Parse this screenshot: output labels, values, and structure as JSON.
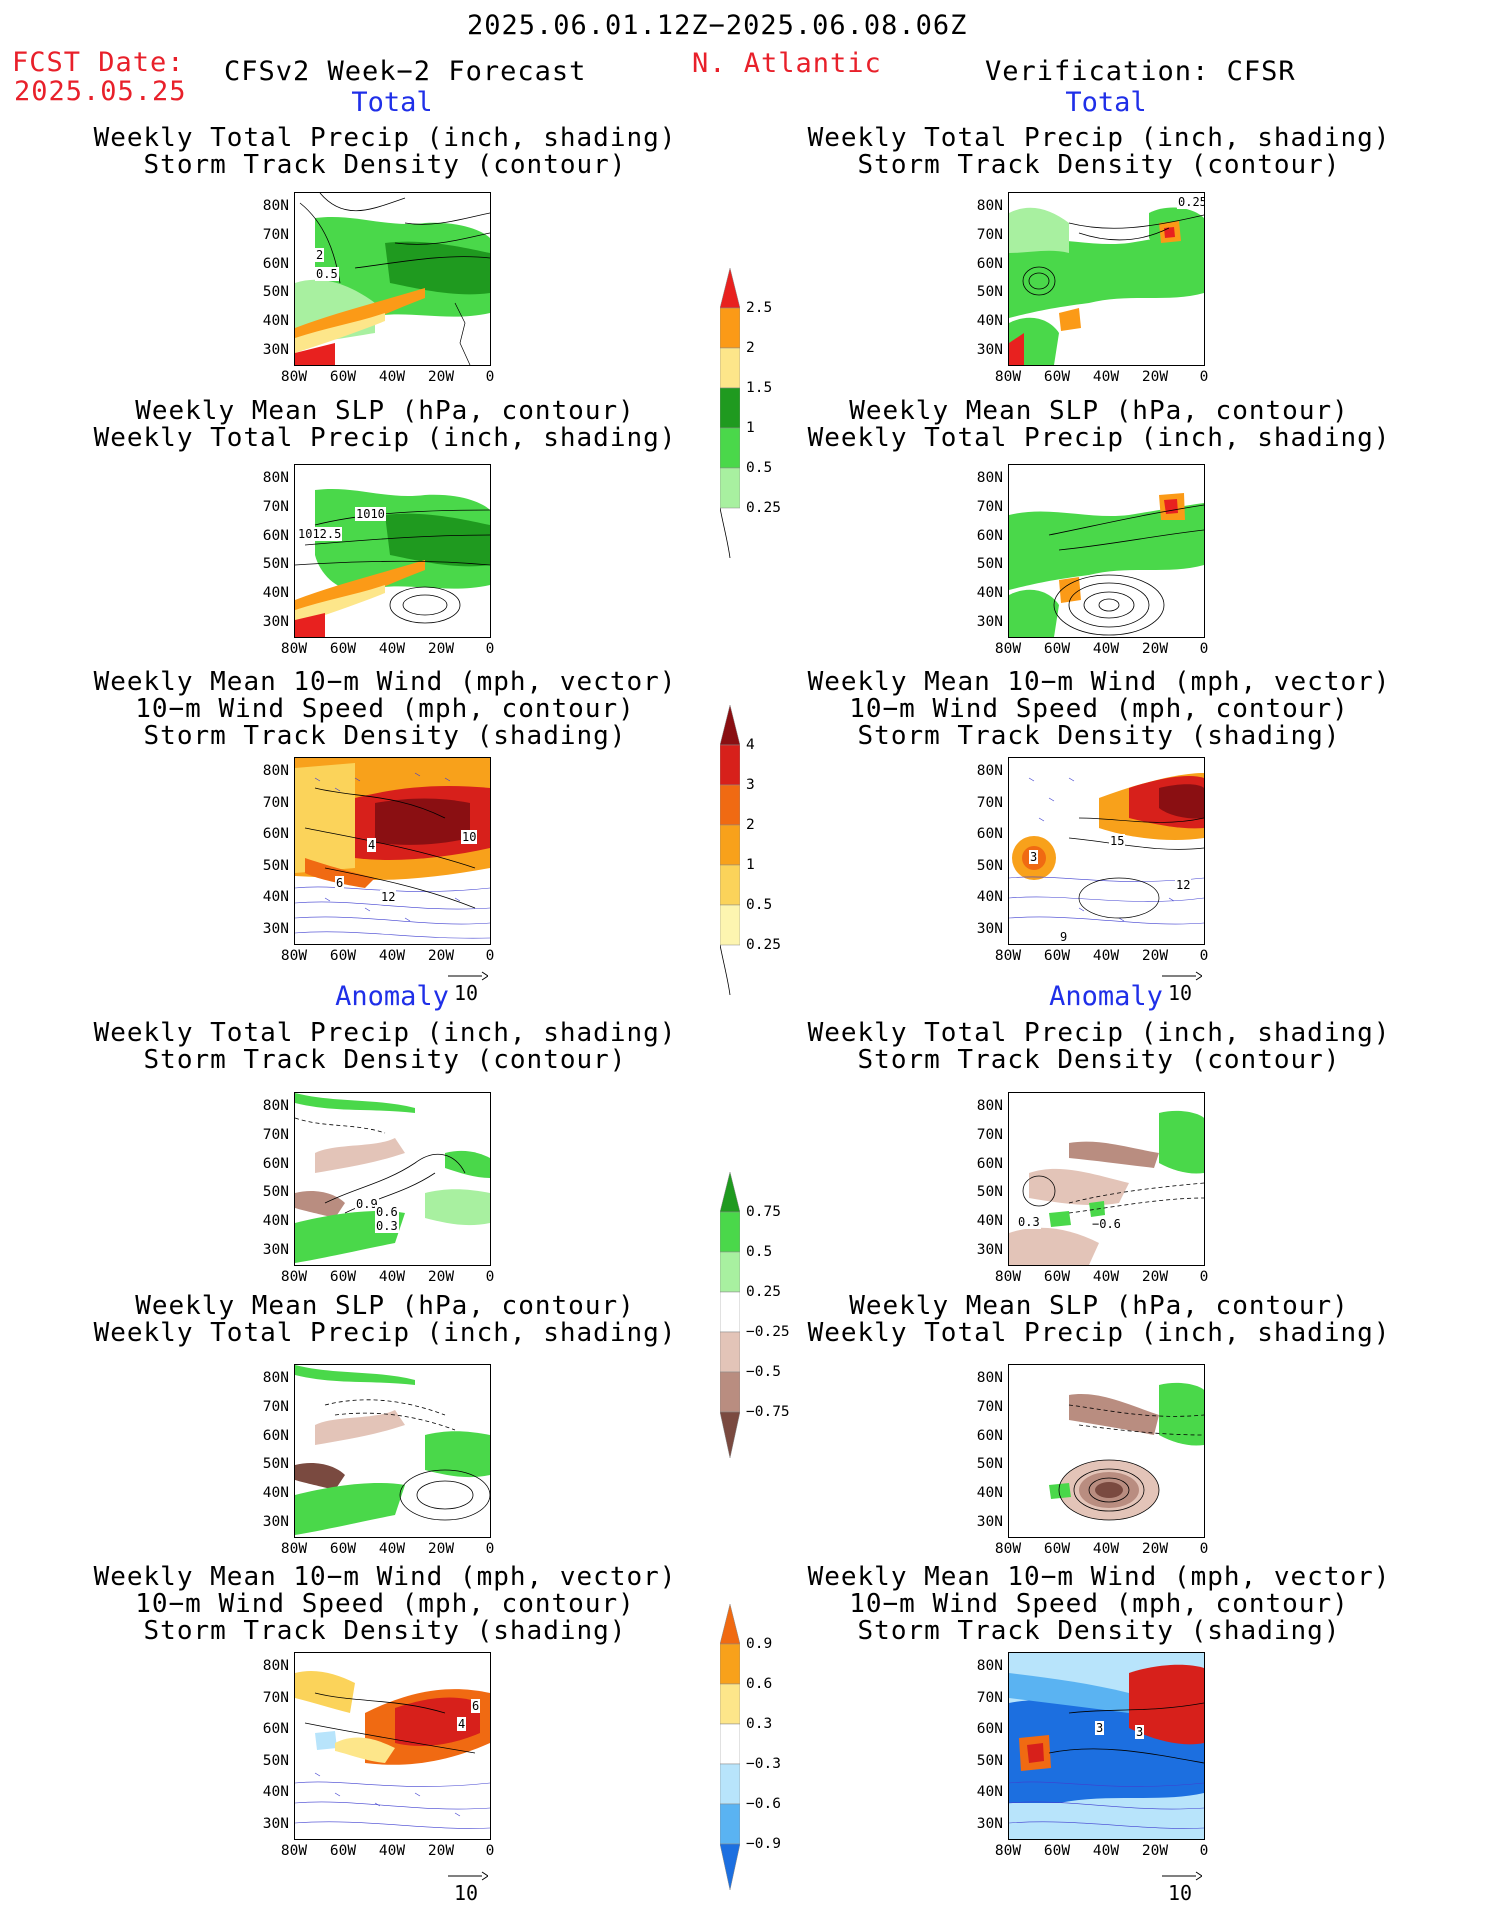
{
  "header": {
    "date_range": "2025.06.01.12Z−2025.06.08.06Z",
    "fcst_label": "FCST Date:",
    "fcst_date": "2025.05.25",
    "left_title": "CFSv2 Week−2 Forecast",
    "region": "N. Atlantic",
    "right_title": "Verification: CFSR"
  },
  "sections": {
    "total": "Total",
    "anomaly": "Anomaly"
  },
  "panel_titles": {
    "precip_track": "Weekly Total Precip (inch, shading)\nStorm Track Density (contour)",
    "slp_precip": "Weekly Mean SLP (hPa, contour)\nWeekly Total Precip (inch, shading)",
    "wind_track": "Weekly Mean 10−m Wind (mph, vector)\n10−m Wind Speed (mph, contour)\nStorm Track Density (shading)"
  },
  "axes": {
    "lat": [
      "80N",
      "70N",
      "60N",
      "50N",
      "40N",
      "30N"
    ],
    "lon": [
      "80W",
      "60W",
      "40W",
      "20W",
      "0"
    ]
  },
  "vector_ref": "10",
  "colorbars": {
    "precip_total": [
      "2.5",
      "2",
      "1.5",
      "1",
      "0.5",
      "0.25"
    ],
    "track_total": [
      "4",
      "3",
      "2",
      "1",
      "0.5",
      "0.25"
    ],
    "precip_anom": [
      "0.75",
      "0.5",
      "0.25",
      "−0.25",
      "−0.5",
      "−0.75"
    ],
    "track_anom": [
      "0.9",
      "0.6",
      "0.3",
      "−0.3",
      "−0.6",
      "−0.9"
    ]
  },
  "map_labels": {
    "f_pt_a": "2",
    "f_pt_b": "0.5",
    "f_sp_a": "1010",
    "f_sp_b": "1012.5",
    "f_wt_a": "4",
    "f_wt_b": "10",
    "f_wt_c": "6",
    "f_wt_d": "12",
    "v_pt_a": "0.25",
    "v_wt_a": "3",
    "v_wt_b": "15",
    "v_wt_c": "12",
    "v_wt_d": "9",
    "fa_pt_a": "0.9",
    "fa_pt_b": "0.6",
    "fa_pt_c": "0.3",
    "va_pt_a": "0.3",
    "va_pt_b": "−0.6",
    "fa_wt_a": "4",
    "fa_wt_b": "6",
    "va_wt_a": "3",
    "va_wt_b": "3"
  },
  "colors": {
    "precip_light": "#a8f0a0",
    "precip_mid": "#4ad84a",
    "precip_dark": "#1f9a1f",
    "precip_yellow": "#fde68a",
    "precip_orange": "#fb9a17",
    "precip_red": "#e8211f",
    "track_pale": "#fdf5b0",
    "track_yellow": "#fbd35a",
    "track_orange": "#f8a11b",
    "track_dorange": "#f06a12",
    "track_red": "#d7201b",
    "track_dred": "#8a0f12",
    "anom_brown1": "#e3c4b8",
    "anom_brown2": "#b98d80",
    "anom_brown3": "#7a4a40",
    "blue_light": "#b8e4fb",
    "blue_mid": "#5ab3f2",
    "blue_dark": "#1c6fe0",
    "contour_vec": "#3f3fd0"
  }
}
